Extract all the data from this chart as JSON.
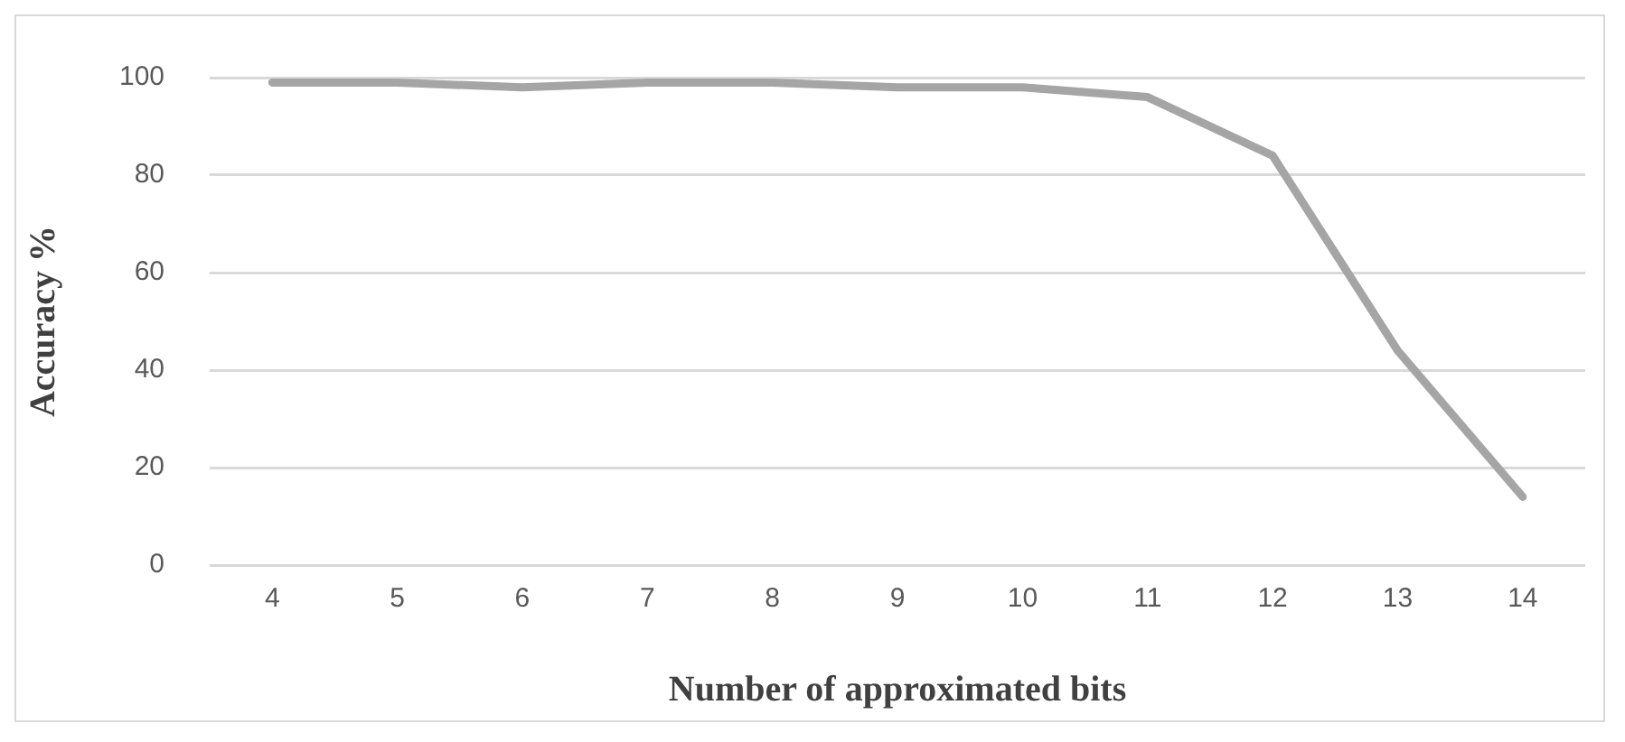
{
  "chart_data": {
    "type": "line",
    "xlabel": "Number of approximated bits",
    "ylabel": "Accuracy %",
    "categories": [
      "4",
      "5",
      "6",
      "7",
      "8",
      "9",
      "10",
      "11",
      "12",
      "13",
      "14"
    ],
    "series": [
      {
        "color": "#a5a5a5",
        "values": [
          99,
          99,
          98,
          99,
          99,
          98,
          98,
          96,
          84,
          44,
          14
        ]
      }
    ],
    "ylim": [
      0,
      100
    ],
    "yticks": [
      0,
      20,
      40,
      60,
      80,
      100
    ],
    "grid": "y",
    "legend": false,
    "marker": "none",
    "line_style": "solid"
  }
}
